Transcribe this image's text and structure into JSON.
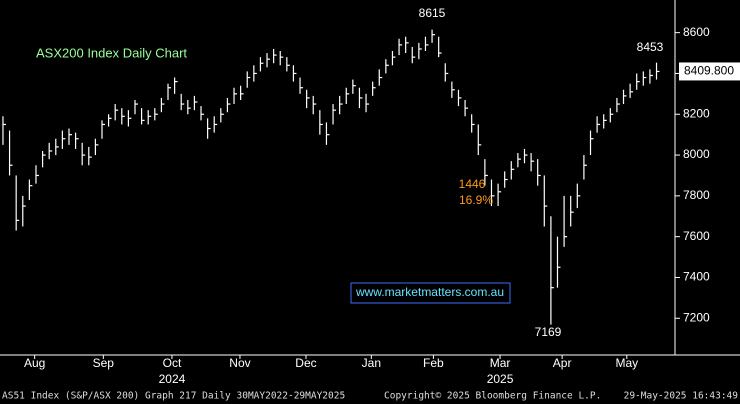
{
  "chart_data": {
    "type": "ohlc",
    "title": "ASX200 Index Daily Chart",
    "website": "www.marketmatters.com.au",
    "footer": [
      "AS51 Index (S&P/ASX 200) Graph 217  Daily 30MAY2022-29MAY2025",
      "Copyright© 2025 Bloomberg Finance L.P.",
      "29-May-2025 16:43:49"
    ],
    "years": [
      {
        "value": 25.6,
        "label": "2024"
      },
      {
        "value": 75.3,
        "label": "2025"
      }
    ],
    "annotations": [
      "8615",
      "8453",
      "7169",
      "1446",
      "16.9%"
    ],
    "last_price": {
      "value": 8409.8,
      "label": "8409.800"
    },
    "xlim": [
      -0.45,
      101.8
    ],
    "xticks": [
      {
        "value": 4.8,
        "label": "Aug"
      },
      {
        "value": 15.2,
        "label": "Sep"
      },
      {
        "value": 25.6,
        "label": "Oct"
      },
      {
        "value": 35.9,
        "label": "Nov"
      },
      {
        "value": 45.9,
        "label": "Dec"
      },
      {
        "value": 55.8,
        "label": "Jan"
      },
      {
        "value": 65.2,
        "label": "Feb"
      },
      {
        "value": 75.3,
        "label": "Mar"
      },
      {
        "value": 84.7,
        "label": "Apr"
      },
      {
        "value": 94.5,
        "label": "May"
      }
    ],
    "ylim": [
      7020,
      8760
    ],
    "yticks": [
      7200,
      7400,
      7600,
      7800,
      8000,
      8200,
      8400,
      8600
    ],
    "series": [
      {
        "name": "AS51 Index",
        "color": "#ffffff",
        "high": [
          8190,
          8120,
          7900,
          7800,
          7880,
          7950,
          8020,
          8060,
          8080,
          8120,
          8130,
          8110,
          8060,
          8040,
          8080,
          8170,
          8200,
          8250,
          8230,
          8220,
          8270,
          8230,
          8220,
          8230,
          8280,
          8350,
          8380,
          8300,
          8270,
          8290,
          8240,
          8180,
          8190,
          8230,
          8280,
          8330,
          8340,
          8410,
          8440,
          8480,
          8500,
          8520,
          8510,
          8480,
          8440,
          8380,
          8320,
          8290,
          8220,
          8160,
          8250,
          8290,
          8330,
          8370,
          8330,
          8300,
          8360,
          8420,
          8470,
          8510,
          8570,
          8580,
          8530,
          8550,
          8580,
          8615,
          8580,
          8450,
          8360,
          8320,
          8270,
          8200,
          8150,
          7980,
          7880,
          7860,
          7920,
          7970,
          8010,
          8030,
          8010,
          7980,
          7900,
          7700,
          7600,
          7800,
          7800,
          7860,
          8000,
          8120,
          8190,
          8200,
          8230,
          8280,
          8320,
          8350,
          8400,
          8410,
          8420,
          8453
        ],
        "low": [
          8050,
          7900,
          7630,
          7650,
          7780,
          7860,
          7940,
          7980,
          8000,
          8030,
          8050,
          8030,
          7950,
          7950,
          8000,
          8080,
          8140,
          8170,
          8150,
          8140,
          8200,
          8150,
          8150,
          8170,
          8210,
          8270,
          8300,
          8220,
          8200,
          8220,
          8170,
          8080,
          8110,
          8160,
          8210,
          8250,
          8270,
          8330,
          8360,
          8410,
          8430,
          8450,
          8440,
          8410,
          8360,
          8300,
          8230,
          8200,
          8100,
          8050,
          8150,
          8200,
          8250,
          8300,
          8230,
          8210,
          8290,
          8340,
          8400,
          8440,
          8490,
          8500,
          8450,
          8470,
          8510,
          8550,
          8480,
          8360,
          8280,
          8240,
          8190,
          8110,
          8000,
          7850,
          7750,
          7750,
          7840,
          7880,
          7940,
          7960,
          7920,
          7850,
          7650,
          7169,
          7350,
          7550,
          7650,
          7740,
          7880,
          8000,
          8110,
          8130,
          8160,
          8210,
          8250,
          8280,
          8320,
          8340,
          8350,
          8370
        ],
        "close": [
          8150,
          7950,
          7680,
          7750,
          7850,
          7900,
          8000,
          8020,
          8040,
          8080,
          8100,
          8080,
          8000,
          7990,
          8050,
          8150,
          8180,
          8220,
          8190,
          8180,
          8250,
          8170,
          8190,
          8200,
          8250,
          8330,
          8360,
          8250,
          8230,
          8260,
          8200,
          8130,
          8150,
          8200,
          8250,
          8300,
          8300,
          8380,
          8400,
          8450,
          8470,
          8490,
          8480,
          8440,
          8400,
          8330,
          8280,
          8250,
          8150,
          8100,
          8220,
          8250,
          8300,
          8340,
          8280,
          8250,
          8330,
          8380,
          8440,
          8480,
          8540,
          8550,
          8480,
          8520,
          8540,
          8590,
          8500,
          8400,
          8320,
          8280,
          8230,
          8150,
          8050,
          7900,
          7800,
          7820,
          7880,
          7930,
          7980,
          8000,
          7970,
          7900,
          7750,
          7350,
          7450,
          7600,
          7720,
          7800,
          7950,
          8080,
          8150,
          8170,
          8200,
          8250,
          8290,
          8310,
          8360,
          8380,
          8390,
          8409.8
        ]
      }
    ]
  }
}
